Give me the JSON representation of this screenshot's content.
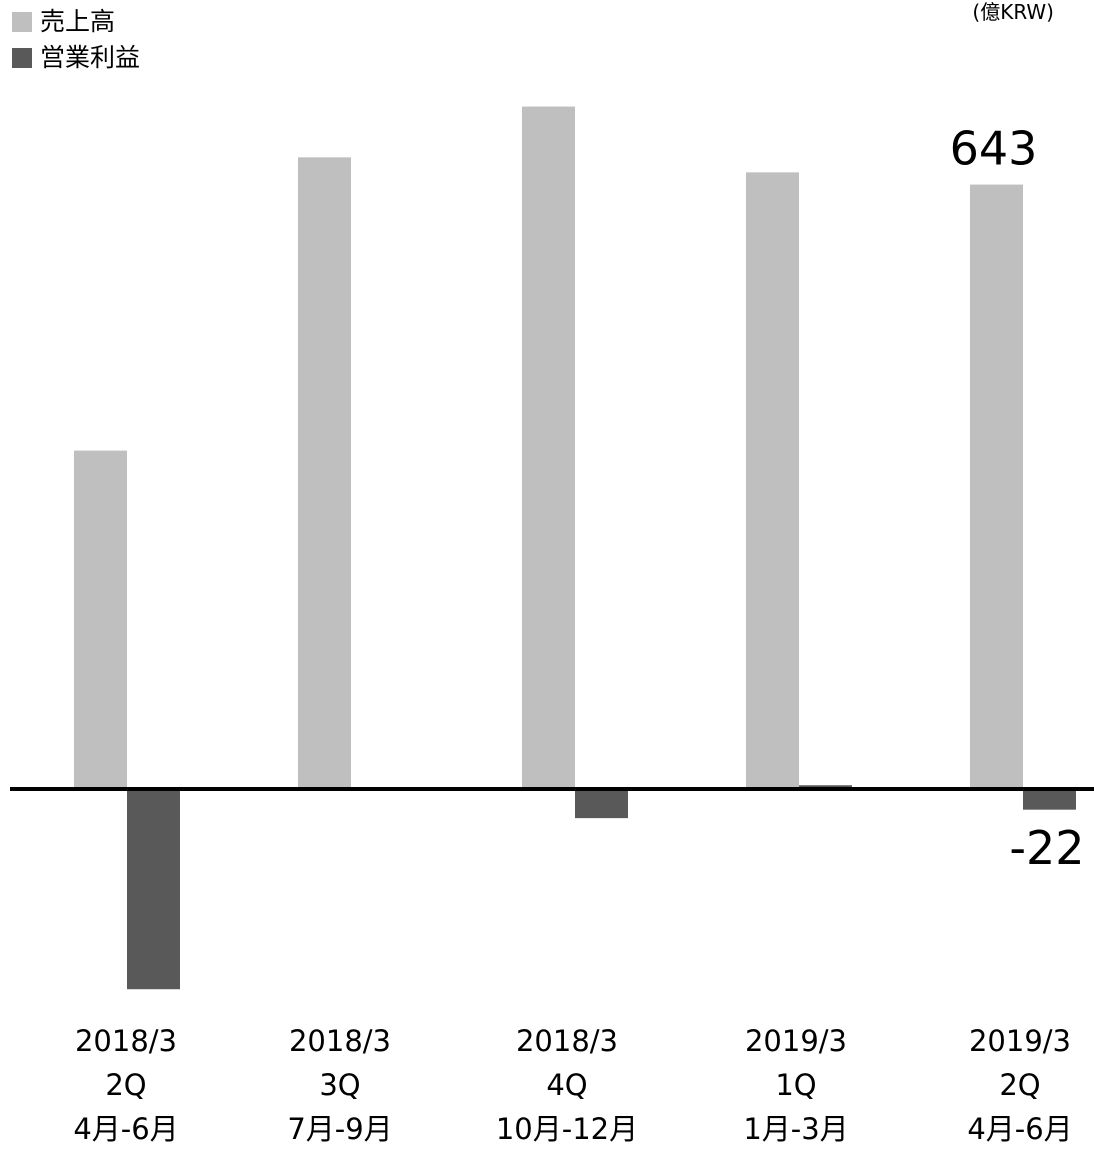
{
  "chart_data": {
    "type": "bar",
    "unit": "(億KRW)",
    "categories": [
      [
        "2018/3",
        "2Q",
        "4月-6月"
      ],
      [
        "2018/3",
        "3Q",
        "7月-9月"
      ],
      [
        "2018/3",
        "4Q",
        "10月-12月"
      ],
      [
        "2019/3",
        "1Q",
        "1月-3月"
      ],
      [
        "2019/3",
        "2Q",
        "4月-6月"
      ]
    ],
    "series": [
      {
        "name": "売上高",
        "color": "#bfbfbf",
        "values": [
          360,
          672,
          726,
          656,
          643
        ]
      },
      {
        "name": "営業利益",
        "color": "#595959",
        "values": [
          -213,
          0,
          -31,
          4,
          -22
        ]
      }
    ],
    "data_labels": {
      "revenue_last": "643",
      "profit_last": "-22"
    },
    "ylim": [
      -240,
      760
    ],
    "grid": false,
    "legend_position": "top-left"
  }
}
